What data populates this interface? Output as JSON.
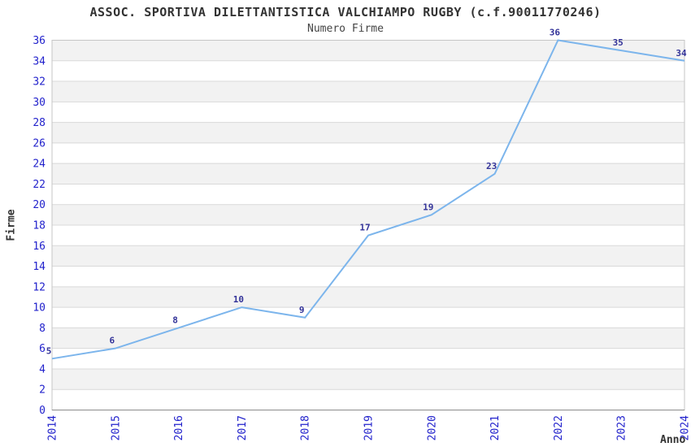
{
  "chart_data": {
    "type": "line",
    "title": "ASSOC. SPORTIVA DILETTANTISTICA VALCHIAMPO RUGBY (c.f.90011770246)",
    "subtitle": "Numero Firme",
    "xlabel": "Anno",
    "ylabel": "Firme",
    "categories": [
      "2014",
      "2015",
      "2016",
      "2017",
      "2018",
      "2019",
      "2020",
      "2021",
      "2022",
      "2023",
      "2024"
    ],
    "values": [
      5,
      6,
      8,
      10,
      9,
      17,
      19,
      23,
      36,
      35,
      34
    ],
    "ylim": [
      0,
      36
    ],
    "ytick_step": 2,
    "grid": true,
    "legend": "none",
    "alternating_bands": true,
    "colors": {
      "line": "#7cb5ec",
      "data_label": "#333399",
      "tick_label": "#2222cc",
      "band": "#f2f2f2",
      "grid": "#d9d9d9",
      "border": "#c6c6c6",
      "axis_line": "#8c8c8c",
      "title": "#333333",
      "subtitle": "#444444"
    }
  }
}
